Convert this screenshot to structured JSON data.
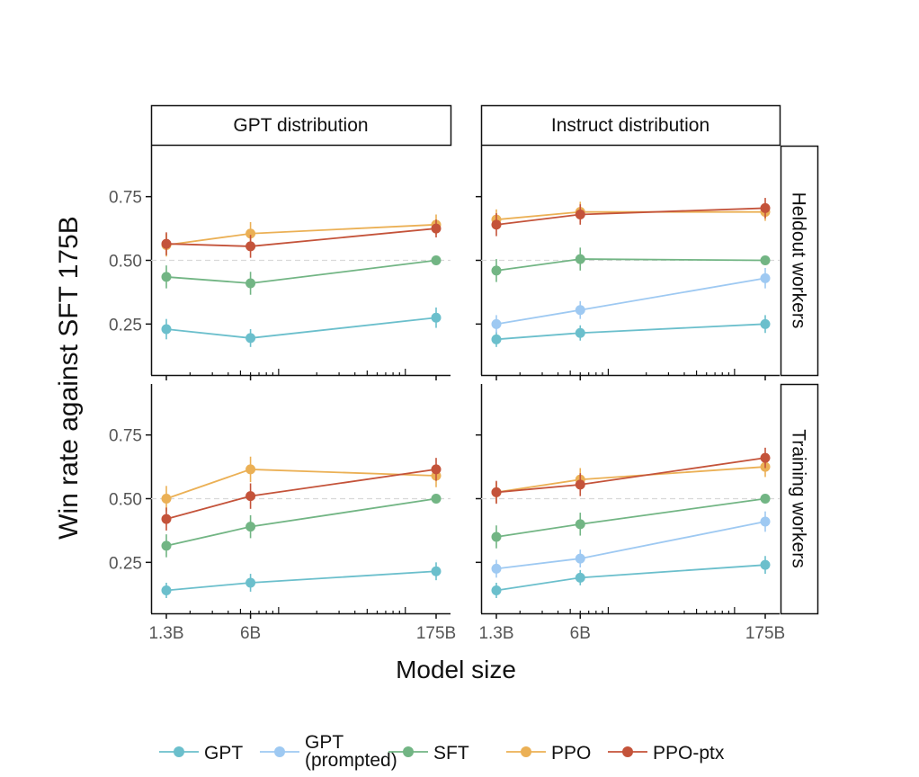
{
  "chart_data": {
    "type": "line",
    "ylabel": "Win rate against SFT 175B",
    "xlabel": "Model size",
    "x_scale": "log",
    "x_ticks": [
      {
        "value": 1.3,
        "label": "1.3B"
      },
      {
        "value": 6,
        "label": "6B"
      },
      {
        "value": 175,
        "label": "175B"
      }
    ],
    "y_ticks": [
      {
        "value": 0.25,
        "label": "0.25"
      },
      {
        "value": 0.5,
        "label": "0.50"
      },
      {
        "value": 0.75,
        "label": "0.75"
      }
    ],
    "ylim": [
      0.05,
      0.95
    ],
    "reference_line": 0.5,
    "column_titles": [
      "GPT distribution",
      "Instruct distribution"
    ],
    "row_titles": [
      "Heldout workers",
      "Training workers"
    ],
    "colors": {
      "GPT": "#6bbfcc",
      "GPT (prompted)": "#9ec9f2",
      "SFT": "#72b584",
      "PPO": "#ebb055",
      "PPO-ptx": "#c4533a"
    },
    "legend": {
      "position": "bottom",
      "entries": [
        {
          "label": "GPT",
          "lines": [
            "GPT"
          ]
        },
        {
          "label": "GPT (prompted)",
          "lines": [
            "GPT",
            "(prompted)"
          ]
        },
        {
          "label": "SFT",
          "lines": [
            "SFT"
          ]
        },
        {
          "label": "PPO",
          "lines": [
            "PPO"
          ]
        },
        {
          "label": "PPO-ptx",
          "lines": [
            "PPO-ptx"
          ]
        }
      ]
    },
    "panels": [
      {
        "column": "GPT distribution",
        "row": "Heldout workers",
        "series": [
          {
            "name": "GPT",
            "x": [
              1.3,
              6,
              175
            ],
            "values": [
              0.23,
              0.195,
              0.275
            ],
            "err": [
              0.04,
              0.035,
              0.04
            ]
          },
          {
            "name": "SFT",
            "x": [
              1.3,
              6,
              175
            ],
            "values": [
              0.435,
              0.41,
              0.5
            ],
            "err": [
              0.045,
              0.045,
              0.0
            ]
          },
          {
            "name": "PPO",
            "x": [
              1.3,
              6,
              175
            ],
            "values": [
              0.56,
              0.605,
              0.64
            ],
            "err": [
              0.045,
              0.045,
              0.04
            ]
          },
          {
            "name": "PPO-ptx",
            "x": [
              1.3,
              6,
              175
            ],
            "values": [
              0.565,
              0.555,
              0.625
            ],
            "err": [
              0.045,
              0.045,
              0.035
            ]
          }
        ]
      },
      {
        "column": "Instruct distribution",
        "row": "Heldout workers",
        "series": [
          {
            "name": "GPT",
            "x": [
              1.3,
              6,
              175
            ],
            "values": [
              0.19,
              0.215,
              0.25
            ],
            "err": [
              0.03,
              0.03,
              0.035
            ]
          },
          {
            "name": "GPT (prompted)",
            "x": [
              1.3,
              6,
              175
            ],
            "values": [
              0.25,
              0.305,
              0.43
            ],
            "err": [
              0.035,
              0.035,
              0.04
            ]
          },
          {
            "name": "SFT",
            "x": [
              1.3,
              6,
              175
            ],
            "values": [
              0.46,
              0.505,
              0.5
            ],
            "err": [
              0.045,
              0.045,
              0.0
            ]
          },
          {
            "name": "PPO",
            "x": [
              1.3,
              6,
              175
            ],
            "values": [
              0.66,
              0.69,
              0.69
            ],
            "err": [
              0.04,
              0.04,
              0.035
            ]
          },
          {
            "name": "PPO-ptx",
            "x": [
              1.3,
              6,
              175
            ],
            "values": [
              0.64,
              0.68,
              0.705
            ],
            "err": [
              0.045,
              0.04,
              0.04
            ]
          }
        ]
      },
      {
        "column": "GPT distribution",
        "row": "Training workers",
        "series": [
          {
            "name": "GPT",
            "x": [
              1.3,
              6,
              175
            ],
            "values": [
              0.14,
              0.17,
              0.215
            ],
            "err": [
              0.03,
              0.035,
              0.035
            ]
          },
          {
            "name": "SFT",
            "x": [
              1.3,
              6,
              175
            ],
            "values": [
              0.315,
              0.39,
              0.5
            ],
            "err": [
              0.045,
              0.045,
              0.0
            ]
          },
          {
            "name": "PPO",
            "x": [
              1.3,
              6,
              175
            ],
            "values": [
              0.5,
              0.615,
              0.59
            ],
            "err": [
              0.05,
              0.05,
              0.045
            ]
          },
          {
            "name": "PPO-ptx",
            "x": [
              1.3,
              6,
              175
            ],
            "values": [
              0.42,
              0.51,
              0.615
            ],
            "err": [
              0.045,
              0.05,
              0.045
            ]
          }
        ]
      },
      {
        "column": "Instruct distribution",
        "row": "Training workers",
        "series": [
          {
            "name": "GPT",
            "x": [
              1.3,
              6,
              175
            ],
            "values": [
              0.14,
              0.19,
              0.24
            ],
            "err": [
              0.03,
              0.03,
              0.035
            ]
          },
          {
            "name": "GPT (prompted)",
            "x": [
              1.3,
              6,
              175
            ],
            "values": [
              0.225,
              0.265,
              0.41
            ],
            "err": [
              0.035,
              0.035,
              0.04
            ]
          },
          {
            "name": "SFT",
            "x": [
              1.3,
              6,
              175
            ],
            "values": [
              0.35,
              0.4,
              0.5
            ],
            "err": [
              0.045,
              0.045,
              0.0
            ]
          },
          {
            "name": "PPO",
            "x": [
              1.3,
              6,
              175
            ],
            "values": [
              0.525,
              0.575,
              0.625
            ],
            "err": [
              0.04,
              0.045,
              0.04
            ]
          },
          {
            "name": "PPO-ptx",
            "x": [
              1.3,
              6,
              175
            ],
            "values": [
              0.525,
              0.555,
              0.66
            ],
            "err": [
              0.045,
              0.045,
              0.04
            ]
          }
        ]
      }
    ]
  }
}
